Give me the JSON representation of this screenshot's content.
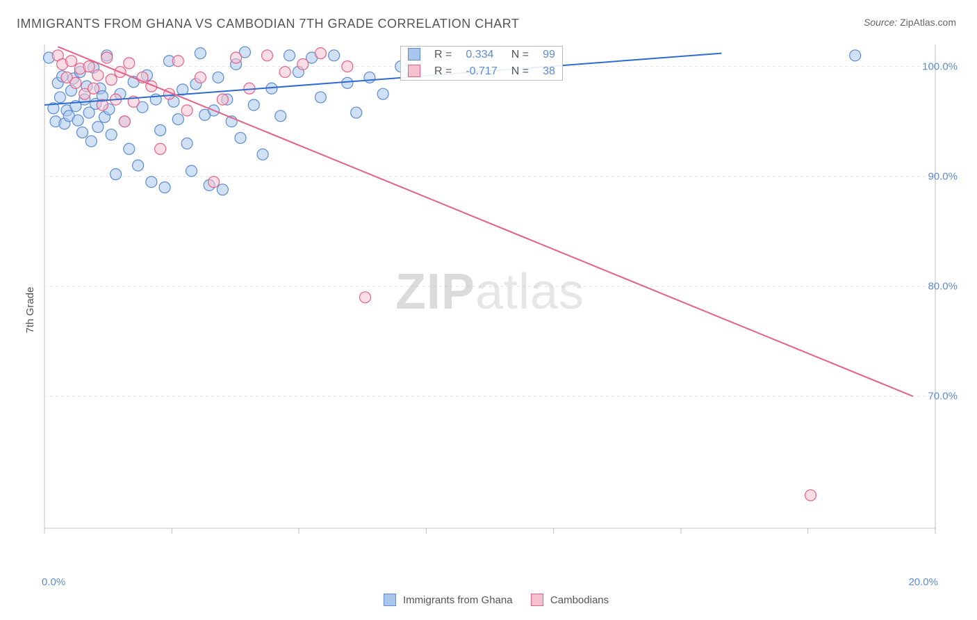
{
  "title": "IMMIGRANTS FROM GHANA VS CAMBODIAN 7TH GRADE CORRELATION CHART",
  "source_prefix": "Source: ",
  "source": "ZipAtlas.com",
  "ylabel": "7th Grade",
  "watermark_a": "ZIP",
  "watermark_b": "atlas",
  "chart": {
    "type": "scatter",
    "xlim": [
      0,
      20
    ],
    "ylim": [
      58,
      102
    ],
    "xticks": [
      0,
      2.86,
      5.71,
      8.57,
      11.43,
      14.29,
      17.14,
      20
    ],
    "xlabels": {
      "0": "0.0%",
      "20": "20.0%"
    },
    "yticks": [
      70,
      80,
      90,
      100
    ],
    "ylabelsfmt": "%",
    "grid_color": "#e3e3e3",
    "axis_color": "#bfbfbf",
    "background": "#ffffff",
    "marker_r": 8,
    "marker_stroke_w": 1.2,
    "line_w": 2,
    "series": [
      {
        "name": "Immigrants from Ghana",
        "color_fill": "#a9c7ec",
        "color_stroke": "#5b8bd4",
        "line_color": "#2e6bd0",
        "R": "0.334",
        "N": "99",
        "trend": {
          "x1": 0,
          "y1": 96.5,
          "x2": 15.2,
          "y2": 101.2
        },
        "points": [
          [
            0.1,
            100.8
          ],
          [
            0.2,
            96.2
          ],
          [
            0.25,
            95.0
          ],
          [
            0.3,
            98.5
          ],
          [
            0.35,
            97.2
          ],
          [
            0.4,
            99.1
          ],
          [
            0.45,
            94.8
          ],
          [
            0.5,
            96.0
          ],
          [
            0.55,
            95.5
          ],
          [
            0.6,
            97.8
          ],
          [
            0.65,
            98.9
          ],
          [
            0.7,
            96.4
          ],
          [
            0.75,
            95.1
          ],
          [
            0.8,
            99.5
          ],
          [
            0.85,
            94.0
          ],
          [
            0.9,
            97.0
          ],
          [
            0.95,
            98.2
          ],
          [
            1.0,
            95.8
          ],
          [
            1.05,
            93.2
          ],
          [
            1.1,
            99.9
          ],
          [
            1.15,
            96.6
          ],
          [
            1.2,
            94.5
          ],
          [
            1.25,
            98.0
          ],
          [
            1.3,
            97.3
          ],
          [
            1.35,
            95.4
          ],
          [
            1.4,
            101.0
          ],
          [
            1.45,
            96.1
          ],
          [
            1.5,
            93.8
          ],
          [
            1.6,
            90.2
          ],
          [
            1.7,
            97.5
          ],
          [
            1.8,
            95.0
          ],
          [
            1.9,
            92.5
          ],
          [
            2.0,
            98.6
          ],
          [
            2.1,
            91.0
          ],
          [
            2.2,
            96.3
          ],
          [
            2.3,
            99.2
          ],
          [
            2.4,
            89.5
          ],
          [
            2.5,
            97.0
          ],
          [
            2.6,
            94.2
          ],
          [
            2.7,
            89.0
          ],
          [
            2.8,
            100.5
          ],
          [
            2.9,
            96.8
          ],
          [
            3.0,
            95.2
          ],
          [
            3.1,
            97.9
          ],
          [
            3.2,
            93.0
          ],
          [
            3.3,
            90.5
          ],
          [
            3.4,
            98.4
          ],
          [
            3.5,
            101.2
          ],
          [
            3.6,
            95.6
          ],
          [
            3.7,
            89.2
          ],
          [
            3.8,
            96.0
          ],
          [
            3.9,
            99.0
          ],
          [
            4.0,
            88.8
          ],
          [
            4.1,
            97.0
          ],
          [
            4.2,
            95.0
          ],
          [
            4.3,
            100.2
          ],
          [
            4.4,
            93.5
          ],
          [
            4.5,
            101.3
          ],
          [
            4.7,
            96.5
          ],
          [
            4.9,
            92.0
          ],
          [
            5.1,
            98.0
          ],
          [
            5.3,
            95.5
          ],
          [
            5.5,
            101.0
          ],
          [
            5.7,
            99.5
          ],
          [
            6.0,
            100.8
          ],
          [
            6.2,
            97.2
          ],
          [
            6.5,
            101.0
          ],
          [
            6.8,
            98.5
          ],
          [
            7.0,
            95.8
          ],
          [
            7.3,
            99.0
          ],
          [
            7.6,
            97.5
          ],
          [
            8.0,
            100.0
          ],
          [
            18.2,
            101.0
          ]
        ]
      },
      {
        "name": "Cambodians",
        "color_fill": "#f4c2cf",
        "color_stroke": "#e65f87",
        "line_color": "#e65f87",
        "R": "-0.717",
        "N": "38",
        "trend": {
          "x1": 0.3,
          "y1": 101.8,
          "x2": 19.5,
          "y2": 70.0
        },
        "points": [
          [
            0.3,
            101.0
          ],
          [
            0.4,
            100.2
          ],
          [
            0.5,
            99.0
          ],
          [
            0.6,
            100.5
          ],
          [
            0.7,
            98.5
          ],
          [
            0.8,
            99.8
          ],
          [
            0.9,
            97.5
          ],
          [
            1.0,
            100.0
          ],
          [
            1.1,
            98.0
          ],
          [
            1.2,
            99.2
          ],
          [
            1.3,
            96.5
          ],
          [
            1.4,
            100.8
          ],
          [
            1.5,
            98.8
          ],
          [
            1.6,
            97.0
          ],
          [
            1.7,
            99.5
          ],
          [
            1.8,
            95.0
          ],
          [
            1.9,
            100.3
          ],
          [
            2.0,
            96.8
          ],
          [
            2.2,
            99.0
          ],
          [
            2.4,
            98.2
          ],
          [
            2.6,
            92.5
          ],
          [
            2.8,
            97.5
          ],
          [
            3.0,
            100.5
          ],
          [
            3.2,
            96.0
          ],
          [
            3.5,
            99.0
          ],
          [
            3.8,
            89.5
          ],
          [
            4.0,
            97.0
          ],
          [
            4.3,
            100.8
          ],
          [
            4.6,
            98.0
          ],
          [
            5.0,
            101.0
          ],
          [
            5.4,
            99.5
          ],
          [
            5.8,
            100.2
          ],
          [
            6.2,
            101.2
          ],
          [
            6.8,
            100.0
          ],
          [
            7.2,
            79.0
          ],
          [
            17.2,
            61.0
          ]
        ]
      }
    ],
    "legend": {
      "items": [
        {
          "label": "Immigrants from Ghana",
          "fill": "#a9c7ec",
          "stroke": "#5b8bd4"
        },
        {
          "label": "Cambodians",
          "fill": "#f4c2cf",
          "stroke": "#e65f87"
        }
      ]
    },
    "stats_labels": {
      "R": "R =",
      "N": "N ="
    }
  }
}
